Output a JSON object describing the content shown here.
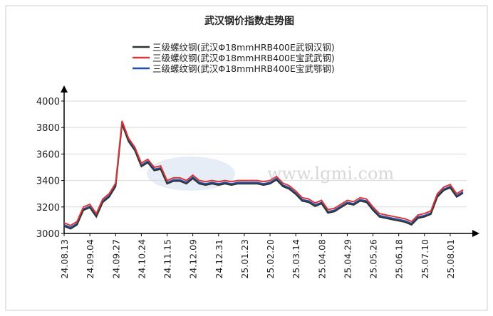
{
  "chart_data": {
    "type": "line",
    "title": "武汉钢价指数走势图",
    "watermark": "www.lgmi.com",
    "categories": [
      "24.08.13",
      null,
      null,
      null,
      "24.09.04",
      null,
      null,
      null,
      "24.09.27",
      null,
      null,
      null,
      "24.10.24",
      null,
      null,
      null,
      "24.11.15",
      null,
      null,
      null,
      "24.12.09",
      null,
      null,
      null,
      "24.12.31",
      null,
      null,
      null,
      "25.01.23",
      null,
      null,
      null,
      "25.02.20",
      null,
      null,
      null,
      "25.03.14",
      null,
      null,
      null,
      "25.04.08",
      null,
      null,
      null,
      "25.04.29",
      null,
      null,
      null,
      "25.05.26",
      null,
      null,
      null,
      "25.06.18",
      null,
      null,
      null,
      "25.07.10",
      null,
      null,
      null,
      "25.08.01",
      null,
      null
    ],
    "series": [
      {
        "name": "三级螺纹钢(武汉Φ18mmHRB400E武钢汉钢)",
        "color": "#333333",
        "values": [
          3055,
          3035,
          3065,
          3175,
          3195,
          3125,
          3235,
          3275,
          3355,
          3825,
          3695,
          3625,
          3505,
          3535,
          3475,
          3485,
          3375,
          3395,
          3395,
          3375,
          3415,
          3375,
          3365,
          3375,
          3365,
          3375,
          3365,
          3375,
          3375,
          3375,
          3375,
          3365,
          3375,
          3405,
          3355,
          3335,
          3295,
          3245,
          3235,
          3205,
          3225,
          3155,
          3165,
          3195,
          3225,
          3215,
          3245,
          3235,
          3175,
          3125,
          3115,
          3105,
          3095,
          3085,
          3065,
          3115,
          3125,
          3145,
          3275,
          3325,
          3345,
          3275,
          3305
        ]
      },
      {
        "name": "三级螺纹钢(武汉Φ18mmHRB400E宝武武钢)",
        "color": "#d9383a",
        "values": [
          3080,
          3060,
          3090,
          3200,
          3220,
          3150,
          3260,
          3300,
          3380,
          3850,
          3720,
          3650,
          3530,
          3560,
          3500,
          3510,
          3400,
          3420,
          3420,
          3400,
          3440,
          3400,
          3390,
          3400,
          3390,
          3400,
          3390,
          3400,
          3400,
          3400,
          3400,
          3390,
          3400,
          3430,
          3380,
          3360,
          3320,
          3270,
          3260,
          3230,
          3250,
          3180,
          3190,
          3220,
          3250,
          3240,
          3270,
          3260,
          3200,
          3150,
          3140,
          3130,
          3120,
          3110,
          3090,
          3140,
          3150,
          3170,
          3300,
          3350,
          3370,
          3300,
          3330
        ]
      },
      {
        "name": "三级螺纹钢(武汉Φ18mmHRB400E宝武鄂钢)",
        "color": "#1f4fa8",
        "values": [
          3065,
          3045,
          3075,
          3185,
          3205,
          3135,
          3245,
          3285,
          3365,
          3835,
          3705,
          3635,
          3515,
          3545,
          3485,
          3495,
          3385,
          3405,
          3405,
          3385,
          3425,
          3385,
          3375,
          3385,
          3375,
          3385,
          3375,
          3385,
          3385,
          3385,
          3385,
          3375,
          3385,
          3415,
          3365,
          3345,
          3305,
          3255,
          3245,
          3215,
          3235,
          3165,
          3175,
          3205,
          3235,
          3225,
          3255,
          3245,
          3185,
          3135,
          3125,
          3115,
          3105,
          3095,
          3075,
          3125,
          3135,
          3155,
          3285,
          3335,
          3355,
          3285,
          3315
        ]
      }
    ],
    "ylim": [
      3000,
      4075
    ],
    "yticks": [
      3000,
      3200,
      3400,
      3600,
      3800,
      4000
    ],
    "grid": true
  }
}
